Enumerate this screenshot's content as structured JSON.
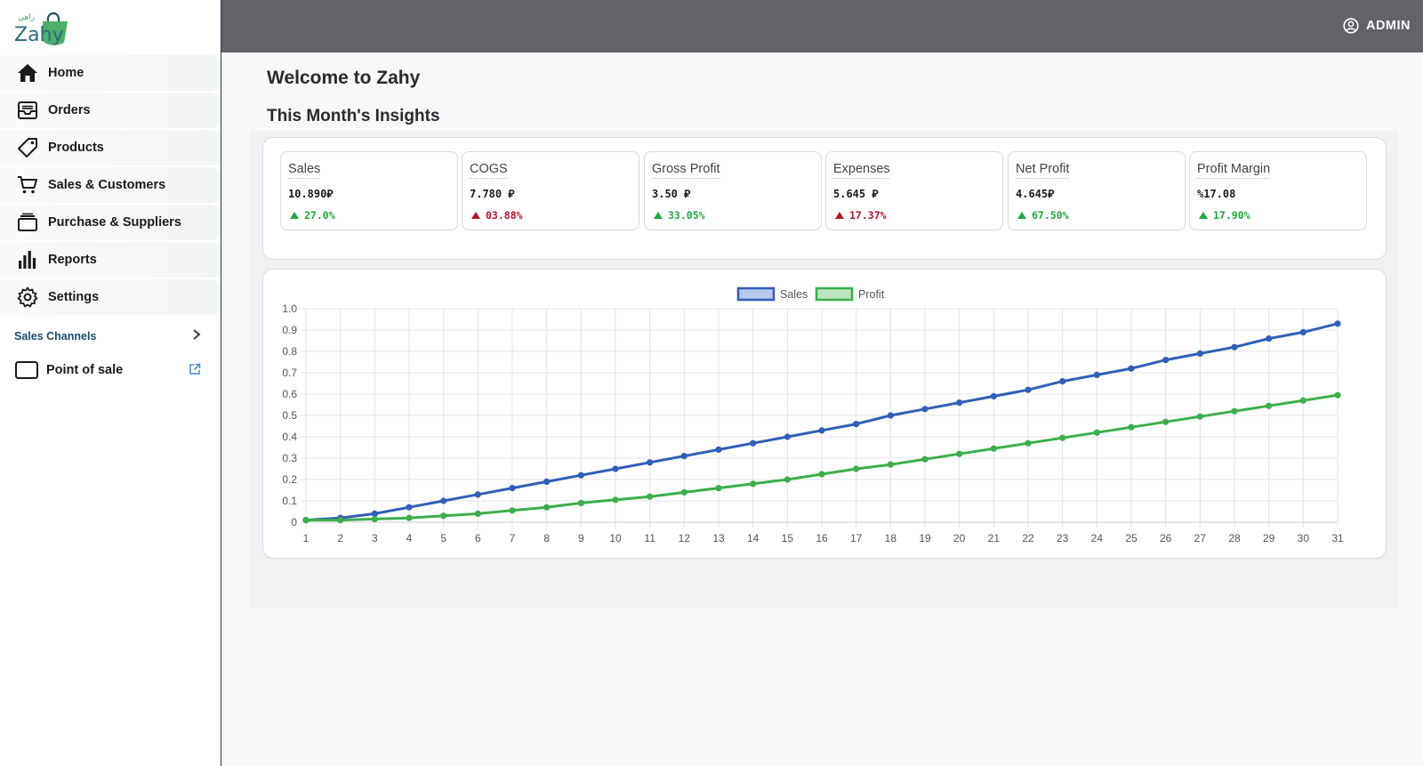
{
  "app": {
    "logo_text": "Zahy",
    "logo_arabic": "زاهي"
  },
  "sidebar": {
    "items": [
      {
        "label": "Home",
        "icon": "home-icon"
      },
      {
        "label": "Orders",
        "icon": "inbox-icon"
      },
      {
        "label": "Products",
        "icon": "tag-icon"
      },
      {
        "label": "Sales & Customers",
        "icon": "cart-icon"
      },
      {
        "label": "Purchase & Suppliers",
        "icon": "box-icon"
      },
      {
        "label": "Reports",
        "icon": "bar-chart-icon"
      },
      {
        "label": "Settings",
        "icon": "gear-icon"
      }
    ],
    "section_label": "Sales Channels",
    "pos_label": "Point of sale"
  },
  "header": {
    "user_label": "ADMIN"
  },
  "main": {
    "title": "Welcome to Zahy",
    "subtitle": "This Month's Insights",
    "kpis": [
      {
        "title": "Sales",
        "value": "10.890⃁",
        "change": "27.0%",
        "trend": "up",
        "color": "#1fa83f"
      },
      {
        "title": "COGS",
        "value": "7.780 ⃁",
        "change": "03.88%",
        "trend": "up",
        "color": "#b0142a"
      },
      {
        "title": "Gross Profit",
        "value": " 3.50 ⃁",
        "change": "33.05%",
        "trend": "up",
        "color": "#1fa83f"
      },
      {
        "title": "Expenses",
        "value": "5.645 ⃁",
        "change": "17.37%",
        "trend": "up",
        "color": "#b0142a"
      },
      {
        "title": "Net Profit",
        "value": " 4.645⃁",
        "change": "67.50%",
        "trend": "up",
        "color": "#1fa83f"
      },
      {
        "title": "Profit Margin",
        "value": " %17.08",
        "change": "17.90%",
        "trend": "up",
        "color": "#1fa83f"
      }
    ]
  },
  "colors": {
    "sales": "#2f5fb8",
    "profit": "#3cae4a",
    "header": "#616368"
  },
  "chart_data": {
    "type": "line",
    "x": [
      1,
      2,
      3,
      4,
      5,
      6,
      7,
      8,
      9,
      10,
      11,
      12,
      13,
      14,
      15,
      16,
      17,
      18,
      19,
      20,
      21,
      22,
      23,
      24,
      25,
      26,
      27,
      28,
      29,
      30,
      31
    ],
    "series": [
      {
        "name": "Sales",
        "values": [
          0.01,
          0.02,
          0.04,
          0.07,
          0.1,
          0.13,
          0.16,
          0.19,
          0.22,
          0.25,
          0.28,
          0.31,
          0.34,
          0.37,
          0.4,
          0.43,
          0.46,
          0.5,
          0.53,
          0.56,
          0.59,
          0.62,
          0.66,
          0.69,
          0.72,
          0.76,
          0.79,
          0.82,
          0.86,
          0.89,
          0.93
        ]
      },
      {
        "name": "Profit",
        "values": [
          0.01,
          0.01,
          0.015,
          0.02,
          0.03,
          0.04,
          0.055,
          0.07,
          0.09,
          0.105,
          0.12,
          0.14,
          0.16,
          0.18,
          0.2,
          0.225,
          0.25,
          0.27,
          0.295,
          0.32,
          0.345,
          0.37,
          0.395,
          0.42,
          0.445,
          0.47,
          0.495,
          0.52,
          0.545,
          0.57,
          0.595
        ]
      }
    ],
    "ylim": [
      0,
      1.0
    ],
    "yticks": [
      "0",
      "0.1",
      "0.2",
      "0.3",
      "0.4",
      "0.5",
      "0.6",
      "0.7",
      "0.8",
      "0.9",
      "1.0"
    ],
    "grid": true,
    "legend": "top-center"
  }
}
